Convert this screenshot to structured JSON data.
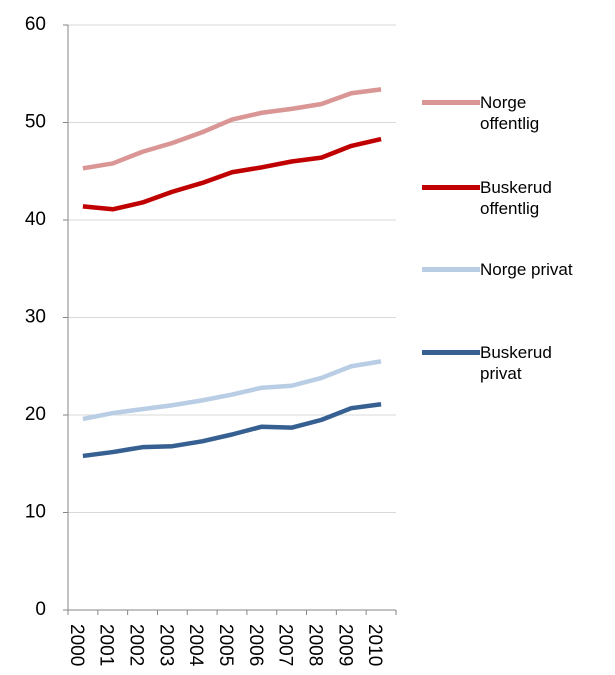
{
  "chart_data": {
    "type": "line",
    "categories": [
      "2000",
      "2001",
      "2002",
      "2003",
      "2004",
      "2005",
      "2006",
      "2007",
      "2008",
      "2009",
      "2010"
    ],
    "series": [
      {
        "name": "Norge offentlig",
        "color": "#d99694",
        "values": [
          45.3,
          45.8,
          47.0,
          47.9,
          49.0,
          50.3,
          51.0,
          51.4,
          51.9,
          53.0,
          53.4
        ]
      },
      {
        "name": "Buskerud offentlig",
        "color": "#c00000",
        "values": [
          41.4,
          41.1,
          41.8,
          42.9,
          43.8,
          44.9,
          45.4,
          46.0,
          46.4,
          47.6,
          48.3
        ]
      },
      {
        "name": "Norge privat",
        "color": "#b9cde5",
        "values": [
          19.6,
          20.2,
          20.6,
          21.0,
          21.5,
          22.1,
          22.8,
          23.0,
          23.8,
          25.0,
          25.5
        ]
      },
      {
        "name": "Buskerud privat",
        "color": "#376092",
        "values": [
          15.8,
          16.2,
          16.7,
          16.8,
          17.3,
          18.0,
          18.8,
          18.7,
          19.5,
          20.7,
          21.1
        ]
      }
    ],
    "ylim": [
      0,
      60
    ],
    "yticks": [
      0,
      10,
      20,
      30,
      40,
      50,
      60
    ],
    "grid": true,
    "legend": "right"
  }
}
